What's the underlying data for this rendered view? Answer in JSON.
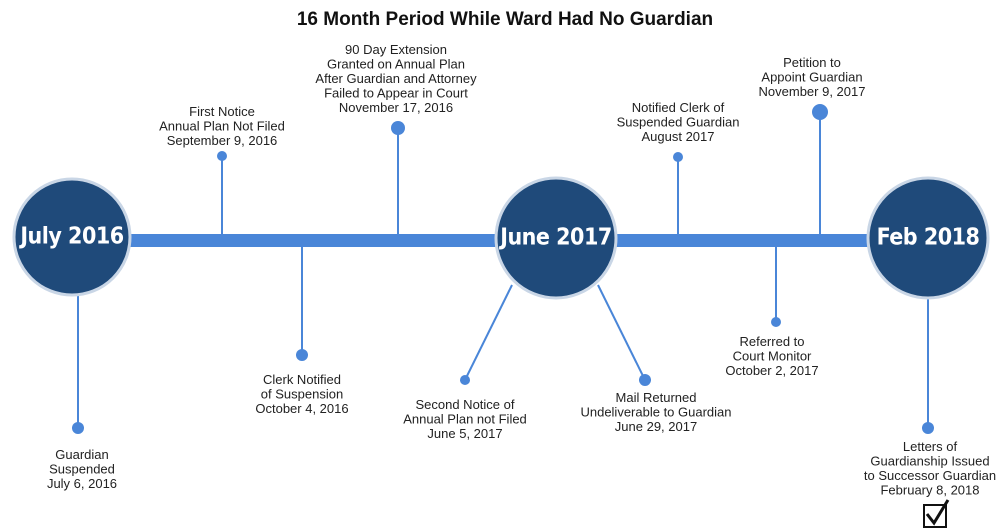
{
  "title": "16 Month Period While Ward Had No Guardian",
  "milestones": [
    "July 2016",
    "June 2017",
    "Feb 2018"
  ],
  "events": [
    {
      "lines": [
        "Guardian",
        "Suspended",
        "July 6, 2016"
      ]
    },
    {
      "lines": [
        "First Notice",
        "Annual Plan Not Filed",
        "September 9, 2016"
      ]
    },
    {
      "lines": [
        "90 Day Extension",
        "Granted on Annual Plan",
        "After Guardian and Attorney",
        "Failed to Appear in Court",
        "November 17, 2016"
      ]
    },
    {
      "lines": [
        "Clerk Notified",
        "of Suspension",
        "October 4, 2016"
      ]
    },
    {
      "lines": [
        "Second Notice of",
        "Annual Plan not Filed",
        "June 5, 2017"
      ]
    },
    {
      "lines": [
        "Mail Returned",
        "Undeliverable to Guardian",
        "June 29, 2017"
      ]
    },
    {
      "lines": [
        "Notified Clerk of",
        "Suspended Guardian",
        "August 2017"
      ]
    },
    {
      "lines": [
        "Petition to",
        "Appoint Guardian",
        "November 9, 2017"
      ]
    },
    {
      "lines": [
        "Referred to",
        "Court Monitor",
        "October 2, 2017"
      ]
    },
    {
      "lines": [
        "Letters of",
        "Guardianship Issued",
        "to Successor Guardian",
        "February 8, 2018"
      ]
    }
  ]
}
